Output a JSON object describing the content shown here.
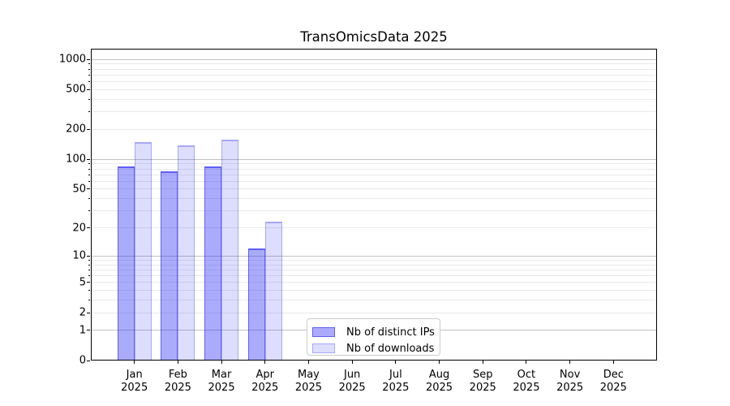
{
  "title": "TransOmicsData 2025",
  "chart_data": {
    "type": "bar",
    "title": "TransOmicsData 2025",
    "y_scale": "log1p",
    "categories": [
      "Jan 2025",
      "Feb 2025",
      "Mar 2025",
      "Apr 2025",
      "May 2025",
      "Jun 2025",
      "Jul 2025",
      "Aug 2025",
      "Sep 2025",
      "Oct 2025",
      "Nov 2025",
      "Dec 2025"
    ],
    "x_tick_months": [
      "Jan",
      "Feb",
      "Mar",
      "Apr",
      "May",
      "Jun",
      "Jul",
      "Aug",
      "Sep",
      "Oct",
      "Nov",
      "Dec"
    ],
    "x_tick_year": "2025",
    "series": [
      {
        "name": "Nb of distinct IPs",
        "values": [
          84,
          76,
          85,
          12,
          null,
          null,
          null,
          null,
          null,
          null,
          null,
          null
        ],
        "fill": "rgba(45,45,245,0.40)",
        "edge": "rgba(45,45,245,0.60)"
      },
      {
        "name": "Nb of downloads",
        "values": [
          150,
          138,
          157,
          23,
          null,
          null,
          null,
          null,
          null,
          null,
          null,
          null
        ],
        "fill": "rgba(45,45,245,0.16)",
        "edge": "rgba(45,45,245,0.30)"
      }
    ],
    "y_ticks": [
      0,
      1,
      2,
      5,
      10,
      20,
      50,
      100,
      200,
      500,
      1000
    ],
    "y_major_gridline_values": [
      1,
      10,
      100,
      1000
    ],
    "y_minor_gridline_values": [
      3,
      4,
      6,
      7,
      8,
      9,
      30,
      40,
      60,
      70,
      80,
      90,
      300,
      400,
      600,
      700,
      800,
      900
    ],
    "ylim": [
      0,
      1276
    ],
    "grid": true,
    "legend_position": "lower center inside axes"
  },
  "legend": {
    "items": [
      {
        "label": "Nb of distinct IPs"
      },
      {
        "label": "Nb of downloads"
      }
    ]
  },
  "colors": {
    "background": "#ffffff",
    "text": "#000000",
    "spine": "#000000",
    "grid_major": "#c2c2c2",
    "grid_minor": "#e9e9e9",
    "legend_border": "#cccccc",
    "legend_background": "#ffffff"
  }
}
